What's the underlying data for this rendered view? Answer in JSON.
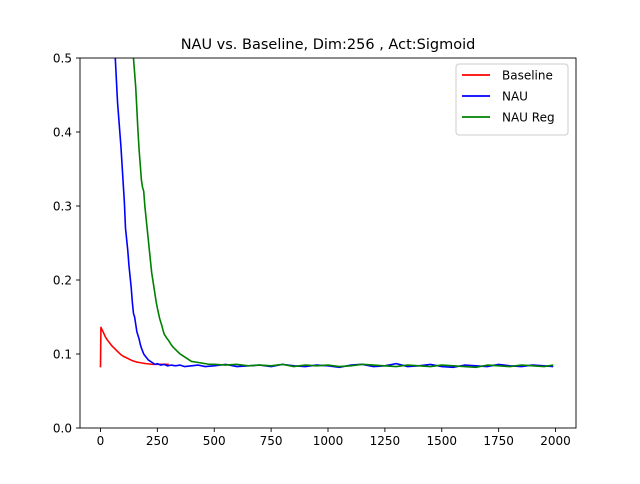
{
  "chart_data": {
    "type": "line",
    "title": "NAU vs. Baseline, Dim:256 , Act:Sigmoid",
    "xlabel": "",
    "ylabel": "",
    "xlim": [
      -90,
      2090
    ],
    "ylim": [
      0,
      0.5
    ],
    "xticks": [
      0,
      250,
      500,
      750,
      1000,
      1250,
      1500,
      1750,
      2000
    ],
    "xtick_labels": [
      "0",
      "250",
      "500",
      "750",
      "1000",
      "1250",
      "1500",
      "1750",
      "2000"
    ],
    "yticks": [
      0.0,
      0.1,
      0.2,
      0.3,
      0.4,
      0.5
    ],
    "ytick_labels": [
      "0.0",
      "0.1",
      "0.2",
      "0.3",
      "0.4",
      "0.5"
    ],
    "grid": false,
    "legend_position": "top-right",
    "series": [
      {
        "name": "Baseline",
        "color": "#ff0000",
        "x": [
          0,
          2,
          5,
          10,
          20,
          30,
          40,
          50,
          60,
          70,
          80,
          90,
          100,
          120,
          140,
          160,
          180,
          200,
          230,
          260,
          300
        ],
        "y": [
          0.082,
          0.136,
          0.134,
          0.131,
          0.124,
          0.119,
          0.115,
          0.111,
          0.108,
          0.105,
          0.102,
          0.099,
          0.097,
          0.094,
          0.091,
          0.089,
          0.088,
          0.087,
          0.086,
          0.086,
          0.086
        ]
      },
      {
        "name": "NAU",
        "color": "#0000ff",
        "x": [
          65,
          70,
          75,
          80,
          85,
          90,
          95,
          100,
          105,
          110,
          115,
          120,
          125,
          130,
          135,
          140,
          145,
          150,
          155,
          160,
          165,
          170,
          175,
          180,
          185,
          190,
          195,
          200,
          210,
          220,
          230,
          240,
          250,
          265,
          280,
          295,
          310,
          330,
          350,
          370,
          400,
          430,
          460,
          500,
          550,
          600,
          650,
          700,
          750,
          800,
          850,
          900,
          950,
          1000,
          1050,
          1100,
          1150,
          1200,
          1250,
          1300,
          1350,
          1400,
          1450,
          1500,
          1550,
          1600,
          1650,
          1700,
          1750,
          1800,
          1850,
          1900,
          1950,
          1990
        ],
        "y": [
          0.5,
          0.47,
          0.44,
          0.42,
          0.4,
          0.38,
          0.355,
          0.33,
          0.305,
          0.27,
          0.255,
          0.24,
          0.22,
          0.205,
          0.19,
          0.17,
          0.155,
          0.15,
          0.14,
          0.13,
          0.125,
          0.12,
          0.113,
          0.108,
          0.104,
          0.1,
          0.098,
          0.096,
          0.092,
          0.09,
          0.088,
          0.086,
          0.087,
          0.085,
          0.086,
          0.084,
          0.085,
          0.084,
          0.085,
          0.083,
          0.084,
          0.085,
          0.083,
          0.084,
          0.086,
          0.083,
          0.084,
          0.085,
          0.083,
          0.086,
          0.084,
          0.083,
          0.085,
          0.084,
          0.082,
          0.085,
          0.086,
          0.083,
          0.084,
          0.087,
          0.083,
          0.084,
          0.086,
          0.083,
          0.082,
          0.085,
          0.084,
          0.083,
          0.086,
          0.084,
          0.083,
          0.085,
          0.084,
          0.083
        ]
      },
      {
        "name": "NAU Reg",
        "color": "#008000",
        "x": [
          145,
          150,
          155,
          160,
          165,
          170,
          175,
          180,
          185,
          190,
          195,
          200,
          205,
          210,
          215,
          220,
          225,
          230,
          235,
          240,
          245,
          250,
          255,
          260,
          265,
          270,
          275,
          280,
          290,
          300,
          310,
          320,
          330,
          340,
          350,
          360,
          370,
          380,
          390,
          400,
          420,
          440,
          460,
          480,
          500,
          550,
          600,
          650,
          700,
          750,
          800,
          850,
          900,
          950,
          1000,
          1050,
          1100,
          1150,
          1200,
          1250,
          1300,
          1350,
          1400,
          1450,
          1500,
          1550,
          1600,
          1650,
          1700,
          1750,
          1800,
          1850,
          1900,
          1950,
          1990
        ],
        "y": [
          0.5,
          0.48,
          0.46,
          0.43,
          0.4,
          0.375,
          0.355,
          0.335,
          0.325,
          0.32,
          0.3,
          0.285,
          0.27,
          0.255,
          0.24,
          0.225,
          0.21,
          0.2,
          0.19,
          0.18,
          0.17,
          0.162,
          0.155,
          0.148,
          0.143,
          0.138,
          0.132,
          0.127,
          0.122,
          0.118,
          0.113,
          0.109,
          0.106,
          0.103,
          0.1,
          0.098,
          0.096,
          0.094,
          0.092,
          0.09,
          0.089,
          0.088,
          0.087,
          0.086,
          0.086,
          0.085,
          0.086,
          0.084,
          0.085,
          0.084,
          0.086,
          0.083,
          0.085,
          0.084,
          0.085,
          0.083,
          0.084,
          0.086,
          0.085,
          0.084,
          0.083,
          0.085,
          0.084,
          0.083,
          0.085,
          0.084,
          0.083,
          0.082,
          0.085,
          0.084,
          0.083,
          0.085,
          0.084,
          0.083,
          0.085
        ]
      }
    ]
  }
}
